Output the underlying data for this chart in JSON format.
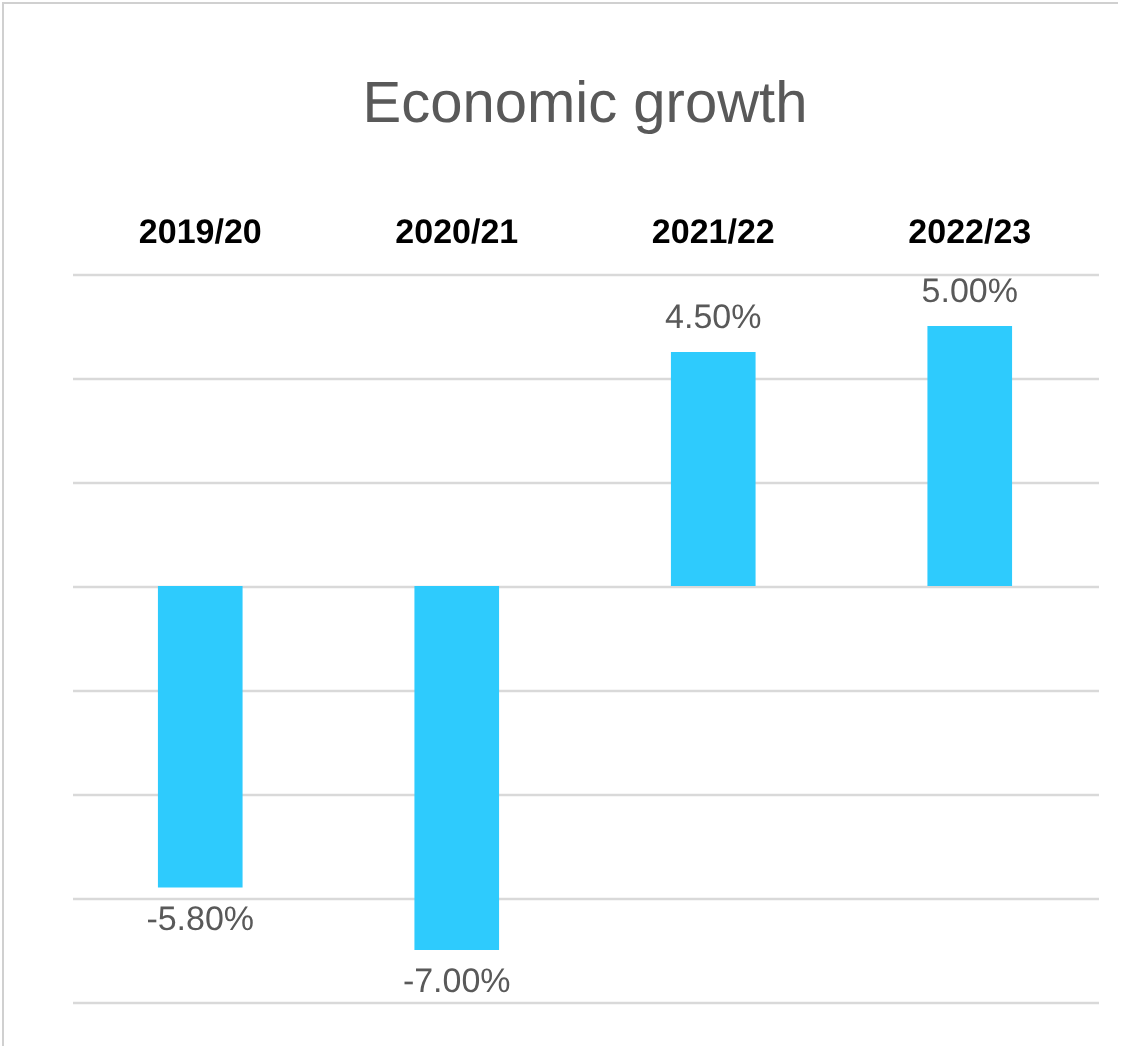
{
  "chart_data": {
    "type": "bar",
    "title": "Economic growth",
    "categories": [
      "2019/20",
      "2020/21",
      "2021/22",
      "2022/23"
    ],
    "values": [
      -5.8,
      -7.0,
      4.5,
      5.0
    ],
    "value_labels": [
      "-5.80%",
      "-7.00%",
      "4.50%",
      "5.00%"
    ],
    "color": "#2ecbfd",
    "ylim": [
      -8,
      6
    ],
    "yticks": [
      {
        "value": -8,
        "label": null
      },
      {
        "value": -6,
        "label": null
      },
      {
        "value": -4,
        "label": null
      },
      {
        "value": -2,
        "label": null
      },
      {
        "value": 0,
        "label": null
      },
      {
        "value": 2,
        "label": null
      },
      {
        "value": 4,
        "label": null
      },
      {
        "value": 6,
        "label": null
      }
    ],
    "tick_labels": "x",
    "grid": "y"
  }
}
